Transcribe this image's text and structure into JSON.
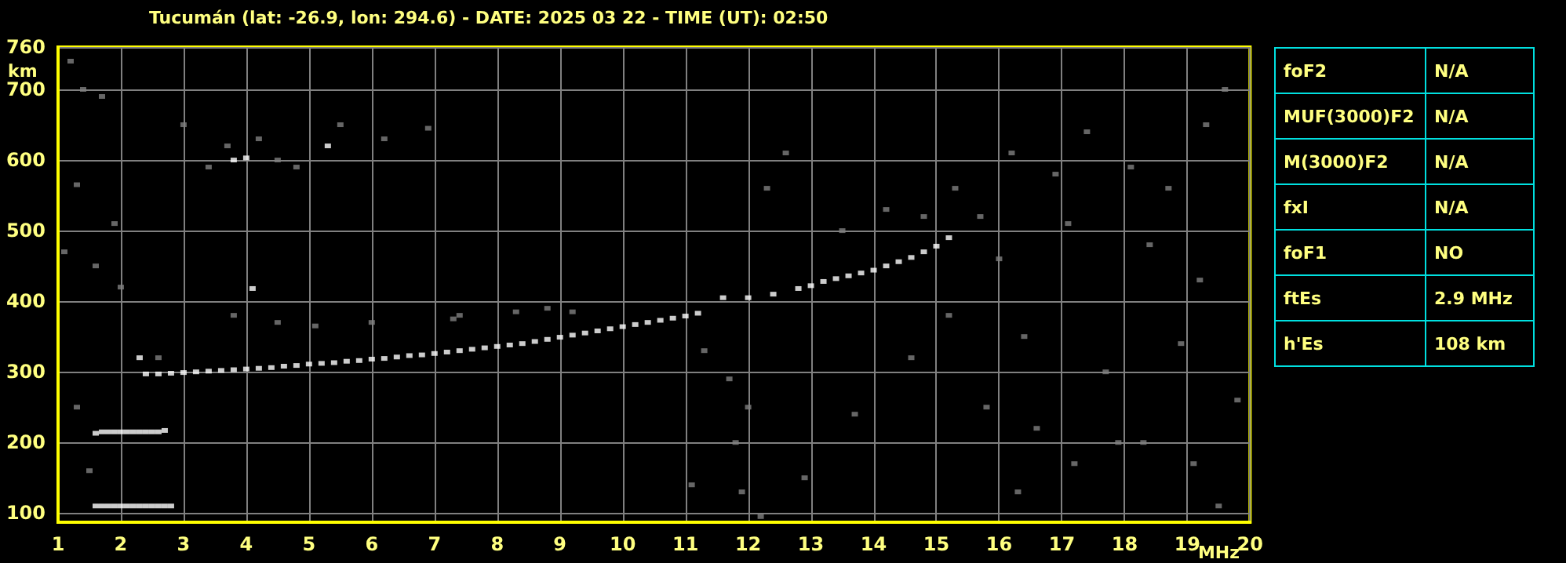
{
  "chart_data": {
    "type": "scatter",
    "title": "Tucumán (lat: -26.9, lon: 294.6) - DATE: 2025 03 22 - TIME (UT): 02:50",
    "xlabel": "MHz",
    "ylabel": "km",
    "xlim": [
      1,
      20
    ],
    "ylim": [
      87,
      760
    ],
    "xticks": [
      1,
      2,
      3,
      4,
      5,
      6,
      7,
      8,
      9,
      10,
      11,
      12,
      13,
      14,
      15,
      16,
      17,
      18,
      19,
      20
    ],
    "yticks": [
      100,
      200,
      300,
      400,
      500,
      600,
      700,
      760
    ],
    "grid": true,
    "marker": "square",
    "series": [
      {
        "color": "#ffffff",
        "x": [
          1.6,
          1.7,
          1.8,
          1.9,
          2.0,
          2.1,
          2.2,
          2.3,
          2.4,
          2.5,
          2.6,
          2.7,
          2.8,
          1.6,
          1.7,
          1.8,
          1.9,
          2.0,
          2.1,
          2.2,
          2.3,
          2.4,
          2.5,
          2.6,
          2.7,
          2.3,
          3.8,
          4.0,
          4.1,
          5.3,
          2.4,
          2.6,
          2.8,
          3.0,
          3.2,
          3.4,
          3.6,
          3.8,
          4.0,
          4.2,
          4.4,
          4.6,
          4.8,
          5.0,
          5.2,
          5.4,
          5.6,
          5.8,
          6.0,
          6.2,
          6.4,
          6.6,
          6.8,
          7.0,
          7.2,
          7.4,
          7.6,
          7.8,
          8.0,
          8.2,
          8.4,
          8.6,
          8.8,
          9.0,
          9.2,
          9.4,
          9.6,
          9.8,
          10.0,
          10.2,
          10.4,
          10.6,
          10.8,
          11.0,
          11.2,
          11.6,
          12.0,
          12.4,
          12.8,
          13.0,
          13.2,
          13.4,
          13.6,
          13.8,
          14.0,
          14.2,
          14.4,
          14.6,
          14.8,
          15.0,
          15.2
        ],
        "values": [
          110,
          110,
          110,
          110,
          110,
          110,
          110,
          110,
          110,
          110,
          110,
          110,
          110,
          213,
          215,
          215,
          215,
          215,
          215,
          215,
          215,
          215,
          215,
          215,
          217,
          320,
          600,
          603,
          418,
          620,
          297,
          297,
          298,
          299,
          300,
          301,
          302,
          303,
          304,
          305,
          306,
          308,
          309,
          311,
          312,
          313,
          315,
          316,
          318,
          319,
          321,
          323,
          324,
          326,
          328,
          330,
          332,
          334,
          336,
          338,
          340,
          343,
          346,
          349,
          352,
          355,
          358,
          361,
          364,
          367,
          370,
          373,
          376,
          379,
          383,
          405,
          405,
          410,
          418,
          422,
          428,
          432,
          436,
          440,
          444,
          450,
          456,
          462,
          470,
          478,
          490
        ]
      },
      {
        "color": "#808080",
        "x": [
          1.2,
          1.4,
          1.7,
          1.3,
          1.9,
          1.1,
          1.6,
          2.0,
          1.3,
          1.5,
          2.6,
          3.0,
          3.4,
          3.7,
          4.2,
          4.5,
          4.8,
          5.5,
          6.2,
          6.9,
          7.4,
          8.8,
          3.8,
          4.5,
          5.1,
          6.0,
          7.3,
          8.3,
          9.2,
          11.3,
          11.7,
          12.0,
          11.8,
          11.9,
          12.3,
          12.6,
          13.5,
          14.2,
          14.8,
          15.3,
          15.7,
          16.2,
          16.9,
          17.4,
          18.1,
          18.7,
          19.3,
          19.6,
          16.0,
          17.1,
          18.4,
          19.2,
          15.2,
          16.4,
          17.7,
          18.9,
          19.8,
          15.8,
          16.6,
          17.9,
          19.1,
          12.9,
          13.7,
          14.6,
          16.3,
          17.2,
          18.3,
          19.5,
          11.1,
          12.2
        ],
        "values": [
          740,
          700,
          690,
          565,
          510,
          470,
          450,
          420,
          250,
          160,
          320,
          650,
          590,
          620,
          630,
          600,
          590,
          650,
          630,
          645,
          380,
          390,
          380,
          370,
          365,
          370,
          375,
          385,
          385,
          330,
          290,
          250,
          200,
          130,
          560,
          610,
          500,
          530,
          520,
          560,
          520,
          610,
          580,
          640,
          590,
          560,
          650,
          700,
          460,
          510,
          480,
          430,
          380,
          350,
          300,
          340,
          260,
          250,
          220,
          200,
          170,
          150,
          240,
          320,
          130,
          170,
          200,
          110,
          140,
          95
        ]
      }
    ],
    "annotations": [
      "foF2",
      "N/A",
      "MUF(3000)F2",
      "N/A",
      "M(3000)F2",
      "N/A",
      "fxI",
      "N/A",
      "foF1",
      "NO",
      "ftEs",
      "2.9 MHz",
      "h'Es",
      "108 km"
    ]
  }
}
